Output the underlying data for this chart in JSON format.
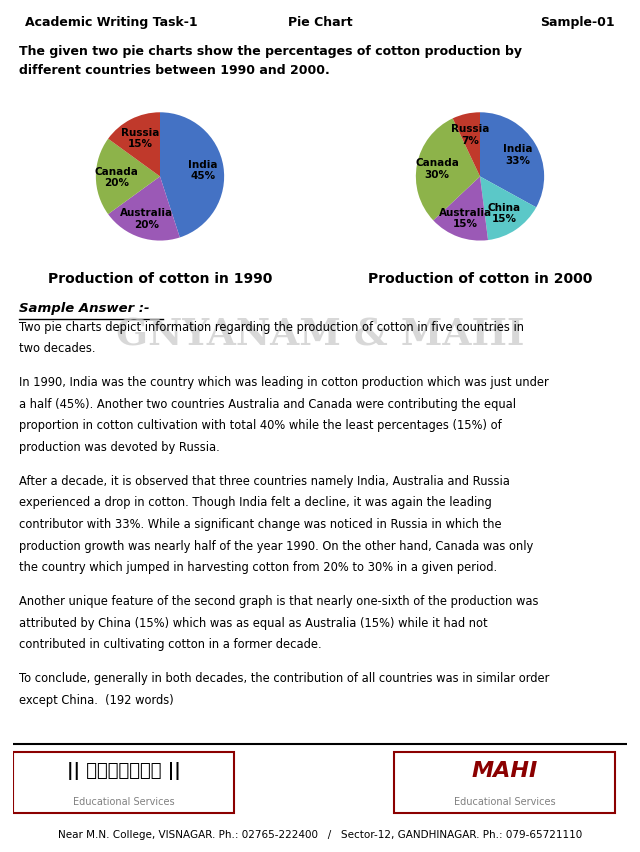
{
  "header_left": "Academic Writing Task-1",
  "header_center": "Pie Chart",
  "header_right": "Sample-01",
  "title_text": "The given two pie charts show the percentages of cotton production by\ndifferent countries between 1990 and 2000.",
  "pie1_title": "Production of cotton in 1990",
  "pie2_title": "Production of cotton in 2000",
  "pie1_labels": [
    "India",
    "Australia",
    "Canada",
    "Russia"
  ],
  "pie1_values": [
    45,
    20,
    20,
    15
  ],
  "pie1_colors": [
    "#4472C4",
    "#9B59B6",
    "#8DB34A",
    "#C0392B"
  ],
  "pie2_labels": [
    "India",
    "China",
    "Australia",
    "Canada",
    "Russia"
  ],
  "pie2_values": [
    33,
    15,
    15,
    30,
    7
  ],
  "pie2_colors": [
    "#4472C4",
    "#5BC8C8",
    "#9B59B6",
    "#8DB34A",
    "#C0392B"
  ],
  "sample_answer_label": "Sample Answer :-",
  "body_text": "Two pie charts depict information regarding the production of cotton in five countries in\ntwo decades.\n\nIn 1990, India was the country which was leading in cotton production which was just under\na half (45%). Another two countries Australia and Canada were contributing the equal\nproportion in cotton cultivation with total 40% while the least percentages (15%) of\nproduction was devoted by Russia.\n\nAfter a decade, it is observed that three countries namely India, Australia and Russia\nexperienced a drop in cotton. Though India felt a decline, it was again the leading\ncontributor with 33%. While a significant change was noticed in Russia in which the\nproduction growth was nearly half of the year 1990. On the other hand, Canada was only\nthe country which jumped in harvesting cotton from 20% to 30% in a given period.\n\nAnother unique feature of the second graph is that nearly one-sixth of the production was\nattributed by China (15%) which was as equal as Australia (15%) while it had not\ncontributed in cultivating cotton in a former decade.\n\nTo conclude, generally in both decades, the contribution of all countries was in similar order\nexcept China.  (192 words)",
  "footer_left_line1": "|| ज्ञानम् ||",
  "footer_left_line2": "Educational Services",
  "footer_right_line1": "MAHI",
  "footer_right_line2": "Educational Services",
  "footer_bottom": "Near M.N. College, VISNAGAR. Ph.: 02765-222400   /   Sector-12, GANDHINAGAR. Ph.: 079-65721110",
  "watermark_text": "GNYANAM & MAHI",
  "bg_color": "#FFFFFF",
  "header_bg": "#E8E8E8"
}
